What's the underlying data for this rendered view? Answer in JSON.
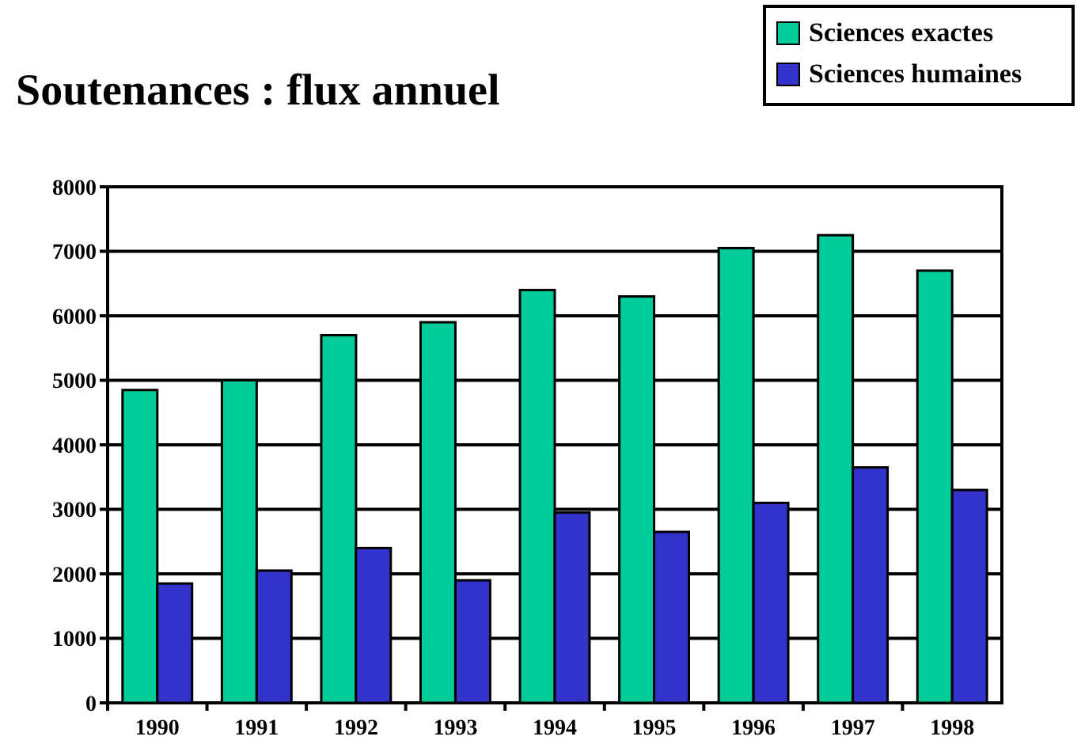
{
  "chart_data": {
    "type": "bar",
    "title": "Soutenances : flux annuel",
    "categories": [
      "1990",
      "1991",
      "1992",
      "1993",
      "1994",
      "1995",
      "1996",
      "1997",
      "1998"
    ],
    "series": [
      {
        "name": "Sciences exactes",
        "color": "#00cc99",
        "values": [
          4850,
          5000,
          5700,
          5900,
          6400,
          6300,
          7050,
          7250,
          6700
        ]
      },
      {
        "name": "Sciences humaines",
        "color": "#3333cc",
        "values": [
          1850,
          2050,
          2400,
          1900,
          2950,
          2650,
          3100,
          3650,
          3300
        ]
      }
    ],
    "ylim": [
      0,
      8000
    ],
    "yticks": [
      0,
      1000,
      2000,
      3000,
      4000,
      5000,
      6000,
      7000,
      8000
    ],
    "grid": "y",
    "legend": "top right"
  }
}
